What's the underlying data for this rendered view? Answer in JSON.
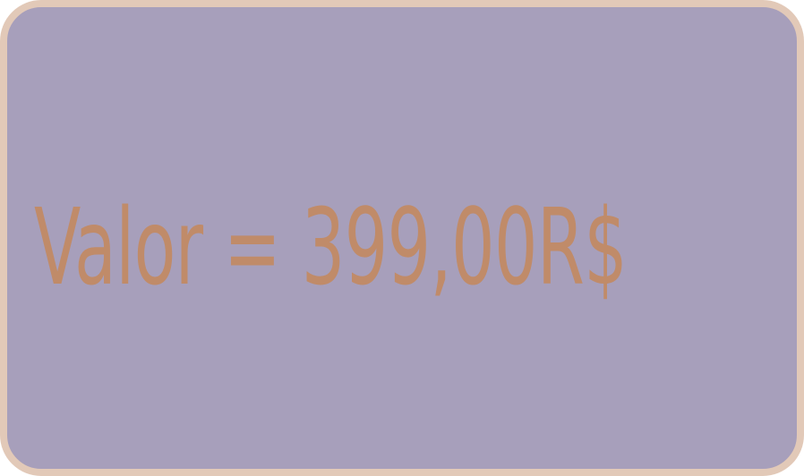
{
  "card": {
    "text": "Valor = 399,00R$",
    "colors": {
      "background": "#a79fbb",
      "border": "#e2c9b8",
      "text": "#c08b69"
    }
  }
}
